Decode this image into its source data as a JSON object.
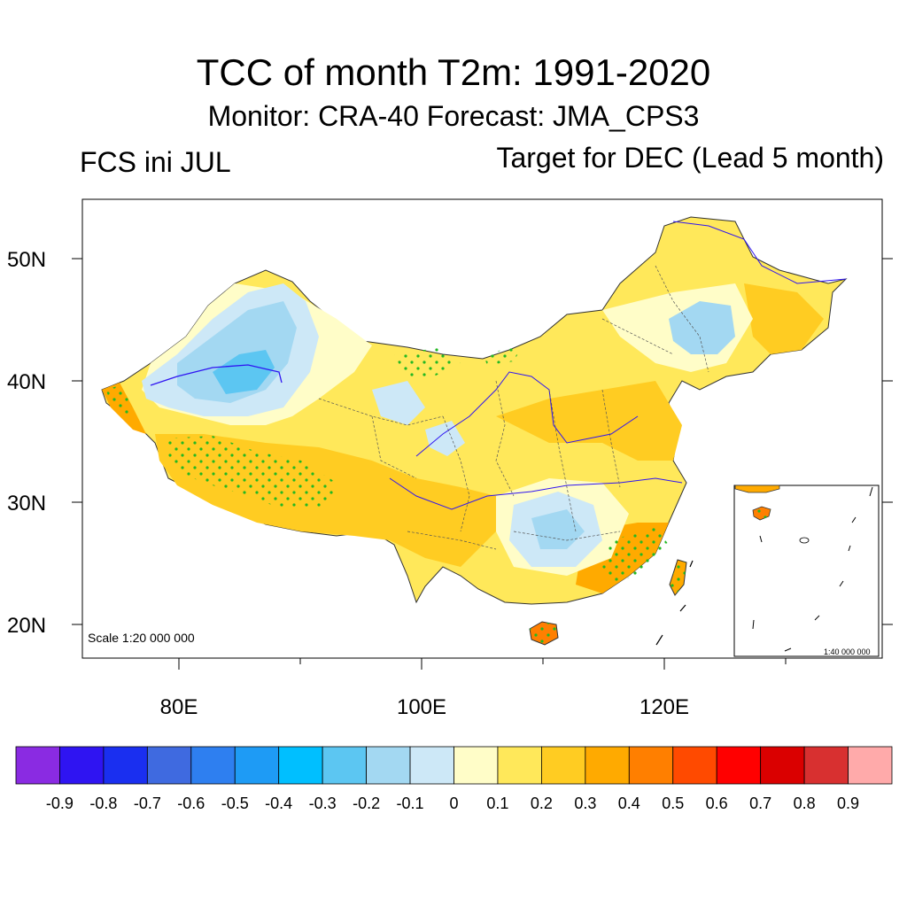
{
  "header": {
    "title": "TCC of month T2m: 1991-2020",
    "subtitle": "Monitor: CRA-40   Forecast: JMA_CPS3",
    "left_label": "FCS ini JUL",
    "right_label": "Target for DEC (Lead 5 month)"
  },
  "axes": {
    "y_ticks": [
      "50N",
      "40N",
      "30N",
      "20N"
    ],
    "x_ticks": [
      "80E",
      "100E",
      "120E"
    ]
  },
  "map": {
    "scale_label": "Scale 1:20 000 000",
    "inset_scale_label": "1:40 000 000"
  },
  "colorbar": {
    "labels": [
      "-0.9",
      "-0.8",
      "-0.7",
      "-0.6",
      "-0.5",
      "-0.4",
      "-0.3",
      "-0.2",
      "-0.1",
      "0",
      "0.1",
      "0.2",
      "0.3",
      "0.4",
      "0.5",
      "0.6",
      "0.7",
      "0.8",
      "0.9"
    ],
    "colors": [
      "#8A2BE2",
      "#2F14F2",
      "#1A2FF0",
      "#3F6AE0",
      "#2E7FF0",
      "#1E9BF5",
      "#00BFFF",
      "#5CC6F2",
      "#A3D8F2",
      "#CDE8F7",
      "#FFFDC8",
      "#FFE85A",
      "#FFCC22",
      "#FFAA00",
      "#FF7F00",
      "#FF4A00",
      "#FF0000",
      "#DA0000",
      "#D83030",
      "#FFAAAA"
    ]
  }
}
